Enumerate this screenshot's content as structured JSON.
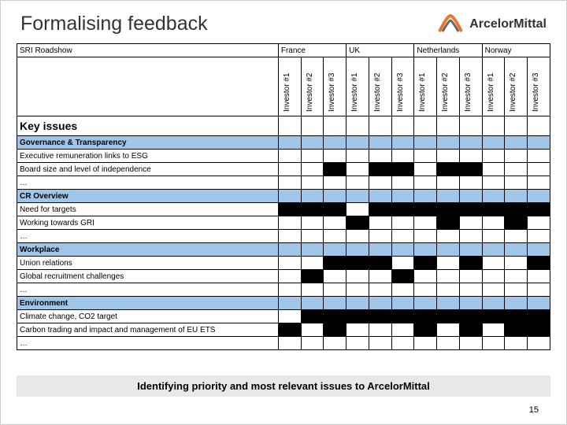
{
  "title": "Formalising feedback",
  "brand": "ArcelorMittal",
  "logo_color": "#e8762d",
  "section_bg": "#9fc5e8",
  "caption": "Identifying priority and most relevant issues to ArcelorMittal",
  "page_number": "15",
  "roadshow_label": "SRI Roadshow",
  "key_issues_label": "Key issues",
  "countries": [
    {
      "name": "France",
      "investors": [
        "Investor #1",
        "Investor #2",
        "Investor #3"
      ]
    },
    {
      "name": "UK",
      "investors": [
        "Investor #1",
        "Investor #2",
        "Investor #3"
      ]
    },
    {
      "name": "Netherlands",
      "investors": [
        "Investor #1",
        "Investor #2",
        "Investor #3"
      ]
    },
    {
      "name": "Norway",
      "investors": [
        "Investor #1",
        "Investor #2",
        "Investor #3"
      ]
    }
  ],
  "sections": [
    {
      "title": "Governance & Transparency",
      "rows": [
        {
          "label": "Executive remuneration links to ESG",
          "marks": [
            0,
            0,
            0,
            0,
            0,
            0,
            0,
            0,
            0,
            0,
            0,
            0
          ]
        },
        {
          "label": "Board size and level of independence",
          "marks": [
            0,
            0,
            1,
            0,
            1,
            1,
            0,
            1,
            1,
            0,
            0,
            0
          ]
        },
        {
          "label": "…",
          "marks": [
            0,
            0,
            0,
            0,
            0,
            0,
            0,
            0,
            0,
            0,
            0,
            0
          ]
        }
      ]
    },
    {
      "title": "CR Overview",
      "rows": [
        {
          "label": "Need for targets",
          "marks": [
            1,
            1,
            1,
            0,
            1,
            1,
            1,
            1,
            1,
            1,
            1,
            1
          ]
        },
        {
          "label": "Working towards GRI",
          "marks": [
            0,
            0,
            0,
            1,
            0,
            0,
            0,
            1,
            0,
            0,
            1,
            0
          ]
        },
        {
          "label": "…",
          "marks": [
            0,
            0,
            0,
            0,
            0,
            0,
            0,
            0,
            0,
            0,
            0,
            0
          ]
        }
      ]
    },
    {
      "title": "Workplace",
      "rows": [
        {
          "label": "Union relations",
          "marks": [
            0,
            0,
            1,
            1,
            1,
            0,
            1,
            0,
            1,
            0,
            0,
            1
          ]
        },
        {
          "label": "Global recruitment challenges",
          "marks": [
            0,
            1,
            0,
            0,
            0,
            1,
            0,
            0,
            0,
            0,
            0,
            0
          ]
        },
        {
          "label": "…",
          "marks": [
            0,
            0,
            0,
            0,
            0,
            0,
            0,
            0,
            0,
            0,
            0,
            0
          ]
        }
      ]
    },
    {
      "title": "Environment",
      "rows": [
        {
          "label": "Climate change, CO2 target",
          "marks": [
            0,
            1,
            1,
            1,
            1,
            1,
            1,
            1,
            1,
            1,
            1,
            1
          ]
        },
        {
          "label": "Carbon trading and impact and management of EU ETS",
          "marks": [
            1,
            0,
            1,
            0,
            0,
            0,
            1,
            0,
            1,
            0,
            1,
            1
          ]
        },
        {
          "label": "…",
          "marks": [
            0,
            0,
            0,
            0,
            0,
            0,
            0,
            0,
            0,
            0,
            0,
            0
          ]
        }
      ]
    }
  ]
}
